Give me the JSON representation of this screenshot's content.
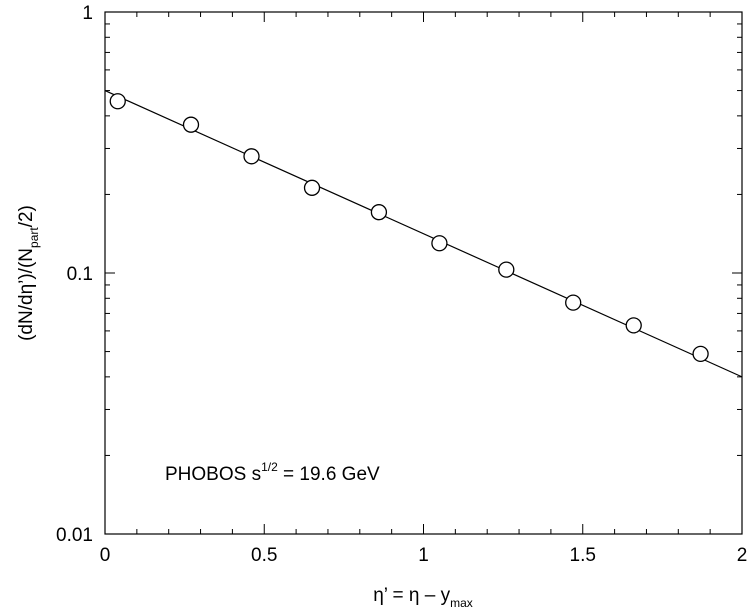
{
  "chart_data": {
    "type": "scatter",
    "title": "",
    "xlabel": {
      "main": "η’ = η – y",
      "sub": "max"
    },
    "ylabel": {
      "prefix": "(dN/dη’)/(N",
      "sub": "part",
      "suffix": "/2)"
    },
    "annotation": {
      "prefix": "PHOBOS s",
      "sup": "1/2",
      "suffix": " = 19.6 GeV"
    },
    "xlim": [
      0,
      2
    ],
    "ylim": [
      0.01,
      1
    ],
    "yscale": "log",
    "grid": false,
    "legend": "none",
    "x_ticks": [
      {
        "value": 0,
        "label": "0"
      },
      {
        "value": 0.5,
        "label": "0.5"
      },
      {
        "value": 1,
        "label": "1"
      },
      {
        "value": 1.5,
        "label": "1.5"
      },
      {
        "value": 2,
        "label": "2"
      }
    ],
    "y_ticks": [
      {
        "value": 0.01,
        "label": "0.01"
      },
      {
        "value": 0.1,
        "label": "0.1"
      },
      {
        "value": 1,
        "label": "1"
      }
    ],
    "series": [
      {
        "marker": "open-circle",
        "x": [
          0.04,
          0.27,
          0.46,
          0.65,
          0.86,
          1.05,
          1.26,
          1.47,
          1.66,
          1.87
        ],
        "y": [
          0.455,
          0.37,
          0.28,
          0.212,
          0.171,
          0.13,
          0.103,
          0.077,
          0.063,
          0.049
        ]
      }
    ],
    "fit_line": {
      "x": [
        0,
        2
      ],
      "y": [
        0.5,
        0.04
      ]
    }
  }
}
